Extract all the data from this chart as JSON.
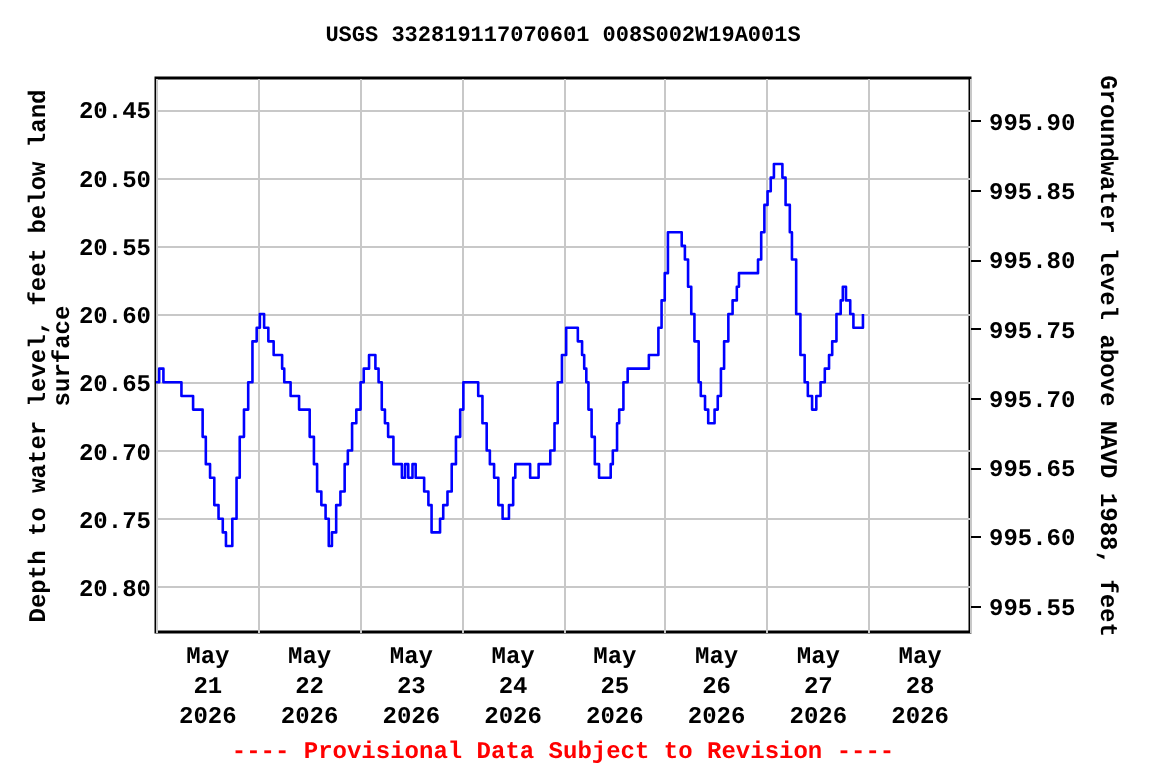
{
  "chart_data": {
    "type": "step",
    "title": "USGS 332819117070601 008S002W19A001S",
    "ylabel": "Depth to water level, feet below land surface",
    "y2label": "Groundwater level above NAVD 1988, feet",
    "annotations": [
      "---- Provisional Data Subject to Revision ----"
    ],
    "grid": true,
    "xlim": [
      "2026-05-21T00:00",
      "2026-05-29T00:00"
    ],
    "xticks": [
      {
        "value": "2026-05-21T00:00",
        "label": null
      },
      {
        "value": "2026-05-21T12:00",
        "label": "May\n21\n2026"
      },
      {
        "value": "2026-05-22T00:00",
        "label": null
      },
      {
        "value": "2026-05-22T12:00",
        "label": "May\n22\n2026"
      },
      {
        "value": "2026-05-23T00:00",
        "label": null
      },
      {
        "value": "2026-05-23T12:00",
        "label": "May\n23\n2026"
      },
      {
        "value": "2026-05-24T00:00",
        "label": null
      },
      {
        "value": "2026-05-24T12:00",
        "label": "May\n24\n2026"
      },
      {
        "value": "2026-05-25T00:00",
        "label": null
      },
      {
        "value": "2026-05-25T12:00",
        "label": "May\n25\n2026"
      },
      {
        "value": "2026-05-26T00:00",
        "label": null
      },
      {
        "value": "2026-05-26T12:00",
        "label": "May\n26\n2026"
      },
      {
        "value": "2026-05-27T00:00",
        "label": null
      },
      {
        "value": "2026-05-27T12:00",
        "label": "May\n27\n2026"
      },
      {
        "value": "2026-05-28T00:00",
        "label": null
      },
      {
        "value": "2026-05-28T12:00",
        "label": "May\n28\n2026"
      },
      {
        "value": "2026-05-29T00:00",
        "label": null
      }
    ],
    "ylim": [
      20.833,
      20.427
    ],
    "yticks": [
      {
        "value": 20.45,
        "label": "20.45"
      },
      {
        "value": 20.5,
        "label": "20.50"
      },
      {
        "value": 20.55,
        "label": "20.55"
      },
      {
        "value": 20.6,
        "label": "20.60"
      },
      {
        "value": 20.65,
        "label": "20.65"
      },
      {
        "value": 20.7,
        "label": "20.70"
      },
      {
        "value": 20.75,
        "label": "20.75"
      },
      {
        "value": 20.8,
        "label": "20.80"
      }
    ],
    "y2lim": [
      995.531,
      995.931
    ],
    "y2ticks": [
      {
        "value": 995.55,
        "label": "995.55"
      },
      {
        "value": 995.6,
        "label": "995.60"
      },
      {
        "value": 995.65,
        "label": "995.65"
      },
      {
        "value": 995.7,
        "label": "995.70"
      },
      {
        "value": 995.75,
        "label": "995.75"
      },
      {
        "value": 995.8,
        "label": "995.80"
      },
      {
        "value": 995.85,
        "label": "995.85"
      },
      {
        "value": 995.9,
        "label": "995.90"
      }
    ],
    "series": [
      {
        "color": "#0000ff",
        "x": [
          "2026-05-21T00:00",
          "2026-05-21T00:45",
          "2026-05-21T01:45",
          "2026-05-21T06:00",
          "2026-05-21T08:45",
          "2026-05-21T10:15",
          "2026-05-21T11:00",
          "2026-05-21T11:45",
          "2026-05-21T12:45",
          "2026-05-21T13:45",
          "2026-05-21T14:45",
          "2026-05-21T15:45",
          "2026-05-21T16:30",
          "2026-05-21T17:15",
          "2026-05-21T18:00",
          "2026-05-21T19:00",
          "2026-05-21T19:45",
          "2026-05-21T20:45",
          "2026-05-21T21:45",
          "2026-05-21T22:45",
          "2026-05-21T23:45",
          "2026-05-22T00:30",
          "2026-05-22T01:30",
          "2026-05-22T02:30",
          "2026-05-22T03:45",
          "2026-05-22T05:45",
          "2026-05-22T06:15",
          "2026-05-22T07:45",
          "2026-05-22T09:45",
          "2026-05-22T11:15",
          "2026-05-22T12:15",
          "2026-05-22T13:15",
          "2026-05-22T14:00",
          "2026-05-22T15:00",
          "2026-05-22T16:00",
          "2026-05-22T16:45",
          "2026-05-22T17:30",
          "2026-05-22T18:30",
          "2026-05-22T19:30",
          "2026-05-22T20:30",
          "2026-05-22T21:15",
          "2026-05-22T22:15",
          "2026-05-22T23:15",
          "2026-05-23T00:15",
          "2026-05-23T01:00",
          "2026-05-23T02:15",
          "2026-05-23T03:45",
          "2026-05-23T04:30",
          "2026-05-23T05:15",
          "2026-05-23T06:00",
          "2026-05-23T06:45",
          "2026-05-23T08:00",
          "2026-05-23T10:00",
          "2026-05-23T10:45",
          "2026-05-23T11:30",
          "2026-05-23T12:30",
          "2026-05-23T13:15",
          "2026-05-23T15:15",
          "2026-05-23T16:15",
          "2026-05-23T17:00",
          "2026-05-23T19:00",
          "2026-05-23T19:45",
          "2026-05-23T20:45",
          "2026-05-23T21:45",
          "2026-05-23T22:45",
          "2026-05-23T23:45",
          "2026-05-24T00:30",
          "2026-05-24T04:00",
          "2026-05-24T05:00",
          "2026-05-24T06:00",
          "2026-05-24T06:45",
          "2026-05-24T07:45",
          "2026-05-24T08:45",
          "2026-05-24T09:45",
          "2026-05-24T11:15",
          "2026-05-24T12:15",
          "2026-05-24T12:45",
          "2026-05-24T16:15",
          "2026-05-24T18:15",
          "2026-05-24T21:00",
          "2026-05-24T22:00",
          "2026-05-24T22:45",
          "2026-05-24T23:45",
          "2026-05-25T00:45",
          "2026-05-25T03:30",
          "2026-05-25T04:30",
          "2026-05-25T05:00",
          "2026-05-25T05:30",
          "2026-05-25T06:00",
          "2026-05-25T06:45",
          "2026-05-25T07:30",
          "2026-05-25T08:30",
          "2026-05-25T11:15",
          "2026-05-25T11:45",
          "2026-05-25T12:45",
          "2026-05-25T13:15",
          "2026-05-25T14:15",
          "2026-05-25T15:15",
          "2026-05-25T20:15",
          "2026-05-25T22:30",
          "2026-05-25T23:15",
          "2026-05-26T00:00",
          "2026-05-26T00:45",
          "2026-05-26T04:00",
          "2026-05-26T04:45",
          "2026-05-26T05:30",
          "2026-05-26T06:15",
          "2026-05-26T07:00",
          "2026-05-26T08:00",
          "2026-05-26T08:30",
          "2026-05-26T09:30",
          "2026-05-26T10:15",
          "2026-05-26T11:45",
          "2026-05-26T12:30",
          "2026-05-26T13:15",
          "2026-05-26T14:00",
          "2026-05-26T15:00",
          "2026-05-26T16:00",
          "2026-05-26T17:00",
          "2026-05-26T17:30",
          "2026-05-26T22:00",
          "2026-05-26T22:45",
          "2026-05-26T23:30",
          "2026-05-27T00:15",
          "2026-05-27T01:00",
          "2026-05-27T01:45",
          "2026-05-27T03:45",
          "2026-05-27T04:30",
          "2026-05-27T05:30",
          "2026-05-27T06:00",
          "2026-05-27T07:00",
          "2026-05-27T08:00",
          "2026-05-27T09:00",
          "2026-05-27T09:45",
          "2026-05-27T10:45",
          "2026-05-27T11:45",
          "2026-05-27T12:45",
          "2026-05-27T13:45",
          "2026-05-27T14:45",
          "2026-05-27T15:30",
          "2026-05-27T16:30",
          "2026-05-27T17:30",
          "2026-05-27T18:00",
          "2026-05-27T18:45",
          "2026-05-27T19:45",
          "2026-05-27T20:30",
          "2026-05-27T22:45"
        ],
        "values": [
          20.65,
          20.64,
          20.65,
          20.66,
          20.67,
          20.67,
          20.69,
          20.71,
          20.72,
          20.74,
          20.75,
          20.76,
          20.77,
          20.77,
          20.75,
          20.72,
          20.69,
          20.67,
          20.65,
          20.62,
          20.61,
          20.6,
          20.61,
          20.62,
          20.63,
          20.64,
          20.65,
          20.66,
          20.67,
          20.67,
          20.69,
          20.71,
          20.73,
          20.74,
          20.75,
          20.77,
          20.76,
          20.74,
          20.73,
          20.71,
          20.7,
          20.68,
          20.67,
          20.65,
          20.64,
          20.63,
          20.64,
          20.65,
          20.67,
          20.68,
          20.69,
          20.71,
          20.72,
          20.71,
          20.72,
          20.71,
          20.72,
          20.73,
          20.74,
          20.76,
          20.75,
          20.74,
          20.73,
          20.71,
          20.69,
          20.67,
          20.65,
          20.66,
          20.68,
          20.7,
          20.71,
          20.72,
          20.74,
          20.75,
          20.74,
          20.72,
          20.71,
          20.72,
          20.71,
          20.7,
          20.68,
          20.65,
          20.63,
          20.61,
          20.62,
          20.63,
          20.64,
          20.65,
          20.67,
          20.69,
          20.71,
          20.72,
          20.71,
          20.7,
          20.68,
          20.67,
          20.65,
          20.64,
          20.63,
          20.61,
          20.59,
          20.57,
          20.54,
          20.55,
          20.56,
          20.58,
          20.6,
          20.62,
          20.65,
          20.66,
          20.67,
          20.68,
          20.67,
          20.66,
          20.64,
          20.62,
          20.6,
          20.59,
          20.58,
          20.57,
          20.56,
          20.54,
          20.52,
          20.51,
          20.5,
          20.49,
          20.5,
          20.52,
          20.54,
          20.56,
          20.6,
          20.63,
          20.65,
          20.66,
          20.67,
          20.66,
          20.65,
          20.64,
          20.63,
          20.62,
          20.6,
          20.59,
          20.58,
          20.59,
          20.6,
          20.61,
          20.6
        ]
      }
    ]
  }
}
